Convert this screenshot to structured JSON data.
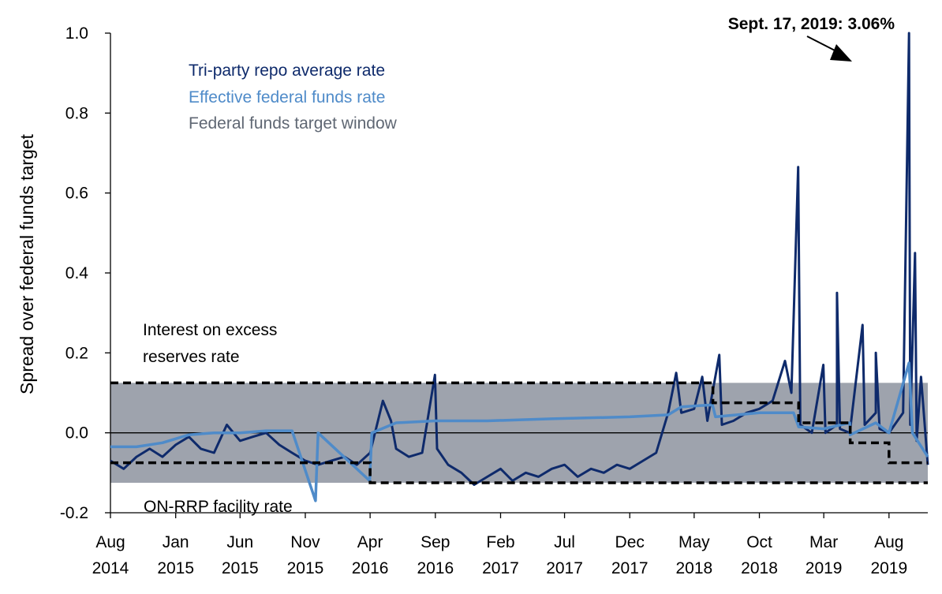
{
  "chart_data": {
    "type": "line",
    "title": "",
    "ylabel": "Spread over federal funds target",
    "xlabel": "",
    "ylim": [
      -0.2,
      1.0
    ],
    "xlim": [
      "2014-08-01",
      "2019-10-31"
    ],
    "y_ticks": [
      "1.0",
      "0.8",
      "0.6",
      "0.4",
      "0.2",
      "0.0",
      "-0.2"
    ],
    "y_tick_values": [
      1.0,
      0.8,
      0.6,
      0.4,
      0.2,
      0.0,
      -0.2
    ],
    "x_ticks": [
      {
        "month": "Aug",
        "year": "2014",
        "date": "2014-08-01"
      },
      {
        "month": "Jan",
        "year": "2015",
        "date": "2015-01-01"
      },
      {
        "month": "Jun",
        "year": "2015",
        "date": "2015-06-01"
      },
      {
        "month": "Nov",
        "year": "2015",
        "date": "2015-11-01"
      },
      {
        "month": "Apr",
        "year": "2016",
        "date": "2016-04-01"
      },
      {
        "month": "Sep",
        "year": "2016",
        "date": "2016-09-01"
      },
      {
        "month": "Feb",
        "year": "2017",
        "date": "2017-02-01"
      },
      {
        "month": "Jul",
        "year": "2017",
        "date": "2017-07-01"
      },
      {
        "month": "Dec",
        "year": "2017",
        "date": "2017-12-01"
      },
      {
        "month": "May",
        "year": "2018",
        "date": "2018-05-01"
      },
      {
        "month": "Oct",
        "year": "2018",
        "date": "2018-10-01"
      },
      {
        "month": "Mar",
        "year": "2019",
        "date": "2019-03-01"
      },
      {
        "month": "Aug",
        "year": "2019",
        "date": "2019-08-01"
      }
    ],
    "legend": {
      "placement": "top-left",
      "entries": [
        {
          "label": "Tri-party repo average rate",
          "color": "#0e2a6b"
        },
        {
          "label": "Effective federal funds rate",
          "color": "#4f8bc9"
        },
        {
          "label": "Federal funds target window",
          "color": "#5f6773"
        }
      ]
    },
    "target_window": {
      "color": "#9ea3ad",
      "upper": 0.125,
      "lower": -0.125
    },
    "ioer": {
      "label_line1": "Interest on excess",
      "label_line2": "reserves rate",
      "steps": [
        {
          "x": "2014-08-01",
          "y": 0.125
        },
        {
          "x": "2018-06-14",
          "y": 0.075
        },
        {
          "x": "2019-01-01",
          "y": 0.025
        },
        {
          "x": "2019-05-02",
          "y": -0.025
        },
        {
          "x": "2019-08-01",
          "y": -0.075
        },
        {
          "x": "2019-10-31",
          "y": -0.075
        }
      ]
    },
    "onrrp": {
      "label": "ON-RRP facility rate",
      "steps": [
        {
          "x": "2014-08-01",
          "y": -0.075
        },
        {
          "x": "2016-04-01",
          "y": -0.125
        },
        {
          "x": "2019-10-31",
          "y": -0.125
        }
      ]
    },
    "series": [
      {
        "name": "Tri-party repo average rate",
        "color": "#0e2a6b",
        "points": [
          {
            "x": "2014-08-01",
            "y": -0.07
          },
          {
            "x": "2014-09-01",
            "y": -0.09
          },
          {
            "x": "2014-10-01",
            "y": -0.06
          },
          {
            "x": "2014-11-01",
            "y": -0.04
          },
          {
            "x": "2014-12-01",
            "y": -0.06
          },
          {
            "x": "2015-01-01",
            "y": -0.03
          },
          {
            "x": "2015-02-01",
            "y": -0.01
          },
          {
            "x": "2015-03-01",
            "y": -0.04
          },
          {
            "x": "2015-04-01",
            "y": -0.05
          },
          {
            "x": "2015-05-01",
            "y": 0.02
          },
          {
            "x": "2015-06-01",
            "y": -0.02
          },
          {
            "x": "2015-07-01",
            "y": -0.01
          },
          {
            "x": "2015-08-01",
            "y": 0.0
          },
          {
            "x": "2015-09-01",
            "y": -0.03
          },
          {
            "x": "2015-10-01",
            "y": -0.05
          },
          {
            "x": "2015-11-01",
            "y": -0.07
          },
          {
            "x": "2015-12-01",
            "y": -0.08
          },
          {
            "x": "2016-01-01",
            "y": -0.07
          },
          {
            "x": "2016-02-01",
            "y": -0.06
          },
          {
            "x": "2016-03-01",
            "y": -0.08
          },
          {
            "x": "2016-04-01",
            "y": -0.05
          },
          {
            "x": "2016-05-01",
            "y": 0.08
          },
          {
            "x": "2016-05-20",
            "y": 0.03
          },
          {
            "x": "2016-06-01",
            "y": -0.04
          },
          {
            "x": "2016-07-01",
            "y": -0.06
          },
          {
            "x": "2016-08-01",
            "y": -0.05
          },
          {
            "x": "2016-08-31",
            "y": 0.145
          },
          {
            "x": "2016-09-05",
            "y": -0.04
          },
          {
            "x": "2016-10-01",
            "y": -0.08
          },
          {
            "x": "2016-11-01",
            "y": -0.1
          },
          {
            "x": "2016-12-01",
            "y": -0.13
          },
          {
            "x": "2017-01-01",
            "y": -0.11
          },
          {
            "x": "2017-02-01",
            "y": -0.09
          },
          {
            "x": "2017-03-01",
            "y": -0.12
          },
          {
            "x": "2017-04-01",
            "y": -0.1
          },
          {
            "x": "2017-05-01",
            "y": -0.11
          },
          {
            "x": "2017-06-01",
            "y": -0.09
          },
          {
            "x": "2017-07-01",
            "y": -0.08
          },
          {
            "x": "2017-08-01",
            "y": -0.11
          },
          {
            "x": "2017-09-01",
            "y": -0.09
          },
          {
            "x": "2017-10-01",
            "y": -0.1
          },
          {
            "x": "2017-11-01",
            "y": -0.08
          },
          {
            "x": "2017-12-01",
            "y": -0.09
          },
          {
            "x": "2018-01-01",
            "y": -0.07
          },
          {
            "x": "2018-02-01",
            "y": -0.05
          },
          {
            "x": "2018-03-01",
            "y": 0.05
          },
          {
            "x": "2018-03-20",
            "y": 0.15
          },
          {
            "x": "2018-04-01",
            "y": 0.05
          },
          {
            "x": "2018-05-01",
            "y": 0.06
          },
          {
            "x": "2018-05-20",
            "y": 0.14
          },
          {
            "x": "2018-06-01",
            "y": 0.03
          },
          {
            "x": "2018-06-29",
            "y": 0.195
          },
          {
            "x": "2018-07-05",
            "y": 0.02
          },
          {
            "x": "2018-08-01",
            "y": 0.03
          },
          {
            "x": "2018-09-01",
            "y": 0.05
          },
          {
            "x": "2018-10-01",
            "y": 0.06
          },
          {
            "x": "2018-11-01",
            "y": 0.08
          },
          {
            "x": "2018-11-30",
            "y": 0.18
          },
          {
            "x": "2018-12-15",
            "y": 0.1
          },
          {
            "x": "2018-12-31",
            "y": 0.665
          },
          {
            "x": "2019-01-05",
            "y": 0.02
          },
          {
            "x": "2019-02-01",
            "y": 0.0
          },
          {
            "x": "2019-02-28",
            "y": 0.17
          },
          {
            "x": "2019-03-05",
            "y": 0.0
          },
          {
            "x": "2019-04-01",
            "y": 0.02
          },
          {
            "x": "2019-04-01",
            "y": 0.35
          },
          {
            "x": "2019-04-08",
            "y": 0.01
          },
          {
            "x": "2019-05-01",
            "y": 0.0
          },
          {
            "x": "2019-05-31",
            "y": 0.27
          },
          {
            "x": "2019-06-05",
            "y": 0.02
          },
          {
            "x": "2019-07-01",
            "y": 0.05
          },
          {
            "x": "2019-07-01",
            "y": 0.2
          },
          {
            "x": "2019-07-10",
            "y": 0.01
          },
          {
            "x": "2019-08-01",
            "y": 0.0
          },
          {
            "x": "2019-09-03",
            "y": 0.05
          },
          {
            "x": "2019-09-17",
            "y": 1.0
          },
          {
            "x": "2019-09-20",
            "y": 0.02
          },
          {
            "x": "2019-10-01",
            "y": 0.45
          },
          {
            "x": "2019-10-05",
            "y": -0.02
          },
          {
            "x": "2019-10-15",
            "y": 0.14
          },
          {
            "x": "2019-10-31",
            "y": -0.08
          }
        ]
      },
      {
        "name": "Effective federal funds rate",
        "color": "#4f8bc9",
        "points": [
          {
            "x": "2014-08-01",
            "y": -0.035
          },
          {
            "x": "2014-10-01",
            "y": -0.035
          },
          {
            "x": "2014-12-01",
            "y": -0.025
          },
          {
            "x": "2015-02-01",
            "y": -0.005
          },
          {
            "x": "2015-04-01",
            "y": 0.0
          },
          {
            "x": "2015-06-01",
            "y": 0.0
          },
          {
            "x": "2015-08-01",
            "y": 0.005
          },
          {
            "x": "2015-10-01",
            "y": 0.005
          },
          {
            "x": "2015-11-25",
            "y": -0.17
          },
          {
            "x": "2015-12-01",
            "y": 0.0
          },
          {
            "x": "2016-03-31",
            "y": -0.12
          },
          {
            "x": "2016-04-05",
            "y": 0.0
          },
          {
            "x": "2016-06-01",
            "y": 0.025
          },
          {
            "x": "2016-09-01",
            "y": 0.03
          },
          {
            "x": "2017-01-01",
            "y": 0.03
          },
          {
            "x": "2017-06-01",
            "y": 0.035
          },
          {
            "x": "2017-12-01",
            "y": 0.04
          },
          {
            "x": "2018-03-01",
            "y": 0.045
          },
          {
            "x": "2018-04-01",
            "y": 0.065
          },
          {
            "x": "2018-06-13",
            "y": 0.07
          },
          {
            "x": "2018-06-20",
            "y": 0.04
          },
          {
            "x": "2018-10-01",
            "y": 0.05
          },
          {
            "x": "2018-12-20",
            "y": 0.05
          },
          {
            "x": "2019-01-01",
            "y": 0.015
          },
          {
            "x": "2019-03-01",
            "y": 0.01
          },
          {
            "x": "2019-05-01",
            "y": 0.025
          },
          {
            "x": "2019-05-02",
            "y": -0.005
          },
          {
            "x": "2019-07-01",
            "y": 0.025
          },
          {
            "x": "2019-08-01",
            "y": 0.0
          },
          {
            "x": "2019-09-17",
            "y": 0.175
          },
          {
            "x": "2019-09-25",
            "y": 0.0
          },
          {
            "x": "2019-10-31",
            "y": -0.06
          }
        ]
      }
    ],
    "annotations": [
      {
        "text": "Sept. 17, 2019: 3.06%",
        "x": "2019-09-17",
        "y": 1.0
      }
    ]
  }
}
